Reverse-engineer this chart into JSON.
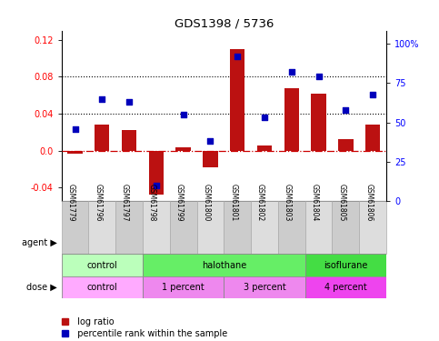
{
  "title": "GDS1398 / 5736",
  "samples": [
    "GSM61779",
    "GSM61796",
    "GSM61797",
    "GSM61798",
    "GSM61799",
    "GSM61800",
    "GSM61801",
    "GSM61802",
    "GSM61803",
    "GSM61804",
    "GSM61805",
    "GSM61806"
  ],
  "log_ratio": [
    -0.003,
    0.028,
    0.022,
    -0.048,
    0.003,
    -0.018,
    0.11,
    0.005,
    0.068,
    0.062,
    0.012,
    0.028
  ],
  "pct_rank": [
    46,
    65,
    63,
    10,
    55,
    38,
    92,
    53,
    82,
    79,
    58,
    68
  ],
  "bar_color": "#BB1111",
  "dot_color": "#0000BB",
  "ylim_left": [
    -0.055,
    0.13
  ],
  "ylim_right": [
    0,
    108.3
  ],
  "yticks_left": [
    -0.04,
    0.0,
    0.04,
    0.08,
    0.12
  ],
  "yticks_right": [
    0,
    25,
    50,
    75,
    100
  ],
  "ytick_labels_right": [
    "0",
    "25",
    "50",
    "75",
    "100%"
  ],
  "hlines": [
    0.04,
    0.08
  ],
  "zero_line_color": "#CC0000",
  "agent_groups": [
    {
      "label": "control",
      "start": 0,
      "end": 3,
      "color": "#BBFFBB"
    },
    {
      "label": "halothane",
      "start": 3,
      "end": 9,
      "color": "#66EE66"
    },
    {
      "label": "isoflurane",
      "start": 9,
      "end": 12,
      "color": "#44DD44"
    }
  ],
  "dose_groups": [
    {
      "label": "control",
      "start": 0,
      "end": 3,
      "color": "#FFAAFF"
    },
    {
      "label": "1 percent",
      "start": 3,
      "end": 6,
      "color": "#EE88EE"
    },
    {
      "label": "3 percent",
      "start": 6,
      "end": 9,
      "color": "#EE88EE"
    },
    {
      "label": "4 percent",
      "start": 9,
      "end": 12,
      "color": "#EE44EE"
    }
  ],
  "legend_log_ratio": "log ratio",
  "legend_pct": "percentile rank within the sample",
  "agent_label": "agent",
  "dose_label": "dose",
  "bg_color": "#FFFFFF",
  "sample_bg_even": "#CCCCCC",
  "sample_bg_odd": "#DDDDDD"
}
